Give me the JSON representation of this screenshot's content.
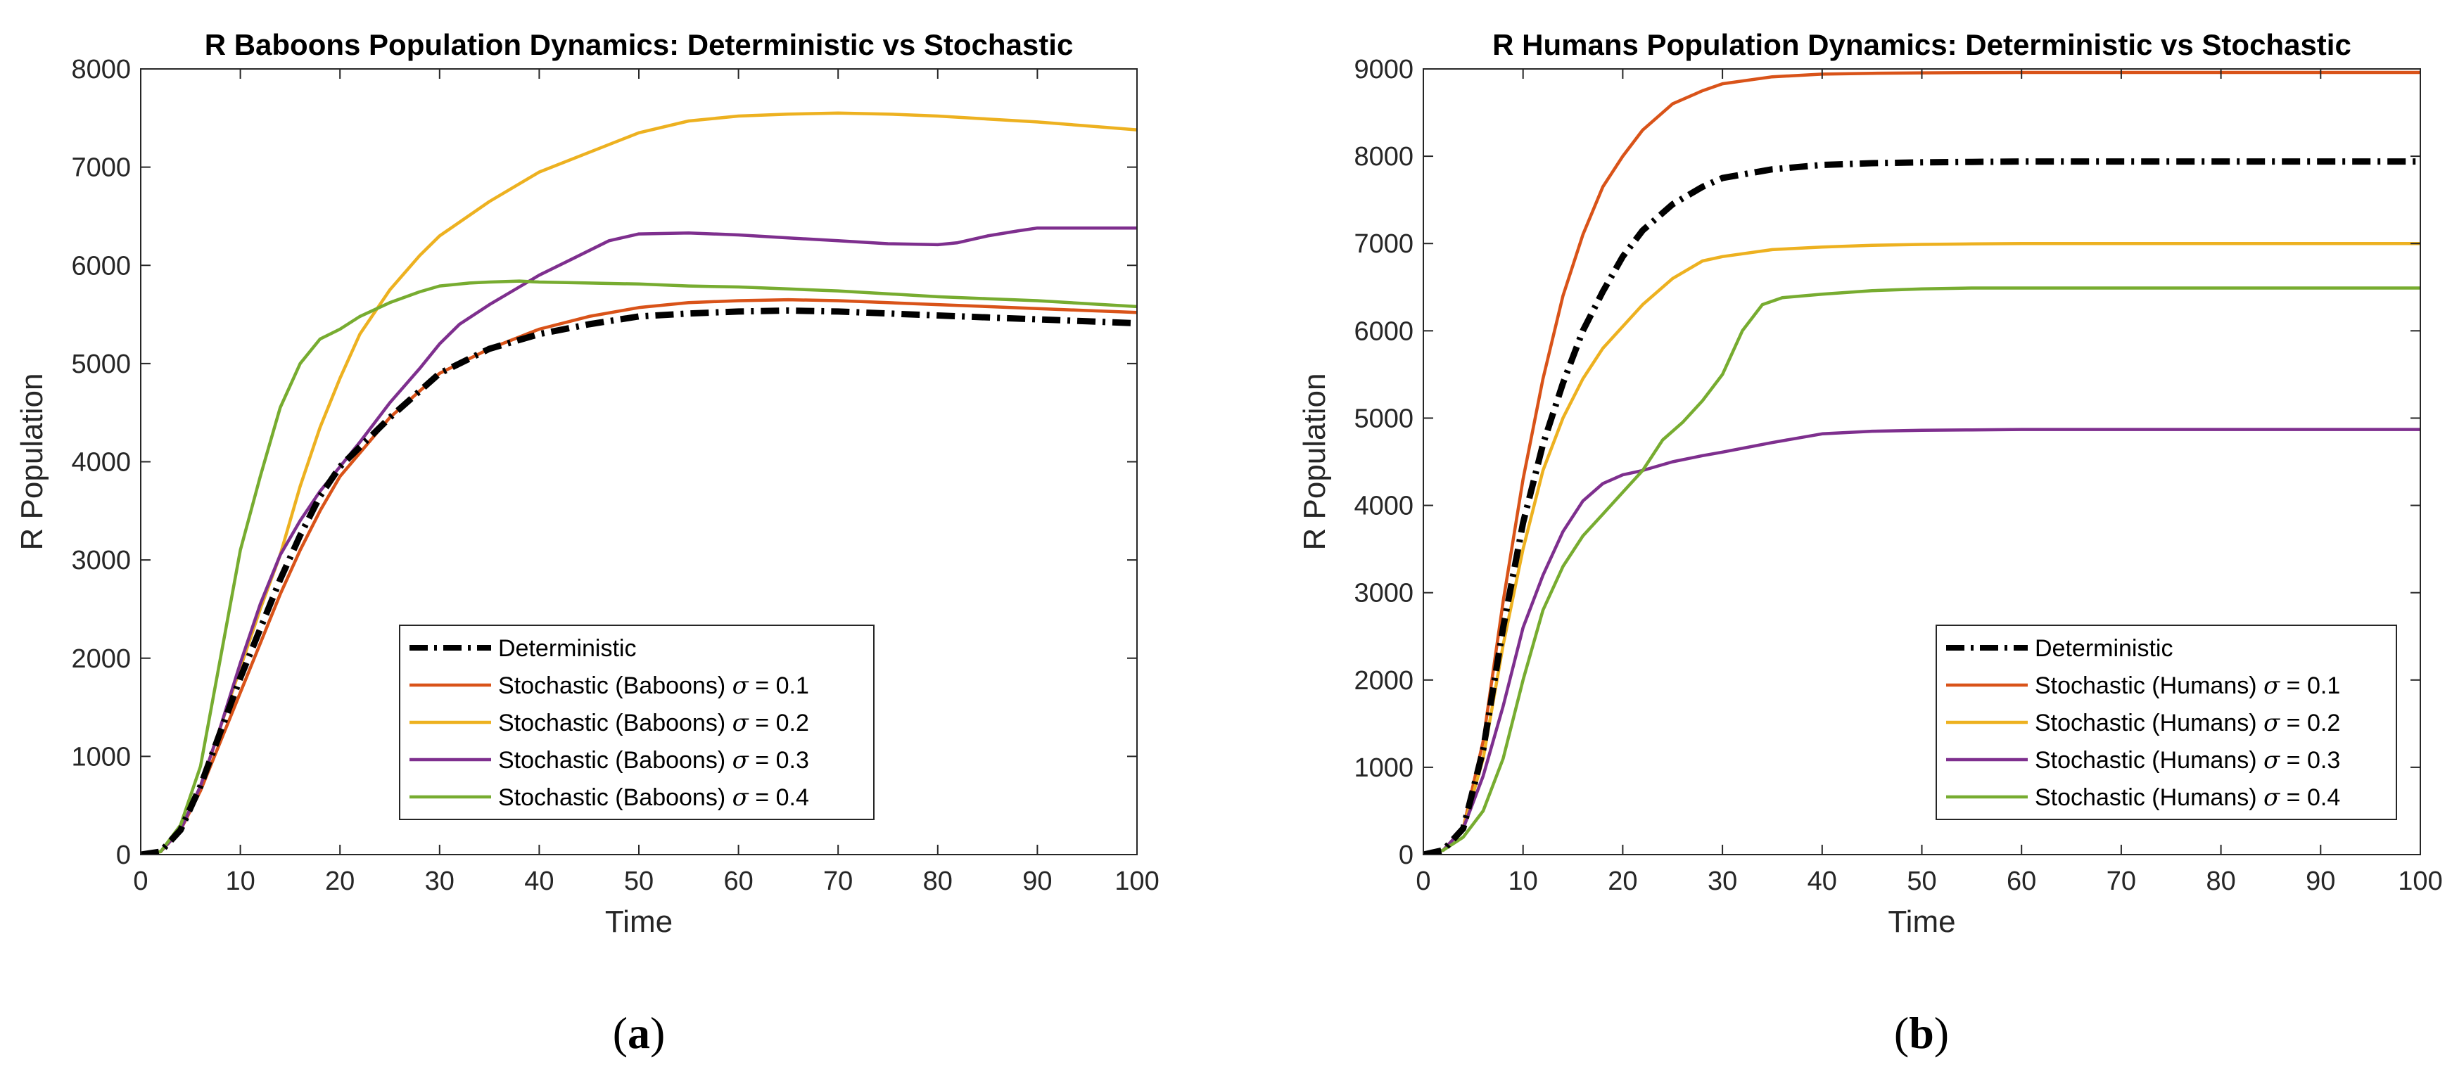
{
  "chart_data": [
    {
      "type": "line",
      "panel": "a",
      "caption_letter": "a",
      "title": "R Baboons Population Dynamics: Deterministic vs Stochastic",
      "xlabel": "Time",
      "ylabel": "R Population",
      "xlim": [
        0,
        100
      ],
      "ylim": [
        0,
        8000
      ],
      "xticks": [
        0,
        10,
        20,
        30,
        40,
        50,
        60,
        70,
        80,
        90,
        100
      ],
      "yticks": [
        0,
        1000,
        2000,
        3000,
        4000,
        5000,
        6000,
        7000,
        8000
      ],
      "legend_position": "bottom-center",
      "series": [
        {
          "name": "Deterministic",
          "legend_prefix": "Deterministic",
          "sigma": "",
          "color": "#000000",
          "style": "dashdot",
          "x": [
            0,
            2,
            4,
            6,
            8,
            10,
            12,
            14,
            16,
            18,
            20,
            25,
            30,
            35,
            40,
            45,
            50,
            55,
            60,
            65,
            70,
            75,
            80,
            85,
            90,
            95,
            100
          ],
          "y": [
            0,
            30,
            250,
            700,
            1250,
            1800,
            2300,
            2800,
            3250,
            3650,
            3950,
            4450,
            4900,
            5150,
            5300,
            5400,
            5480,
            5510,
            5530,
            5540,
            5530,
            5510,
            5490,
            5470,
            5450,
            5430,
            5410
          ]
        },
        {
          "name": "Stochastic (Baboons) σ = 0.1",
          "legend_prefix": "Stochastic (Baboons) ",
          "sigma": "0.1",
          "color": "#D95319",
          "style": "solid",
          "x": [
            0,
            2,
            4,
            6,
            8,
            10,
            12,
            14,
            16,
            18,
            20,
            25,
            30,
            35,
            40,
            45,
            50,
            55,
            60,
            65,
            70,
            75,
            80,
            85,
            90,
            95,
            100
          ],
          "y": [
            0,
            30,
            250,
            650,
            1150,
            1650,
            2150,
            2650,
            3100,
            3500,
            3850,
            4450,
            4900,
            5150,
            5350,
            5480,
            5570,
            5620,
            5640,
            5650,
            5640,
            5620,
            5600,
            5580,
            5560,
            5540,
            5520
          ]
        },
        {
          "name": "Stochastic (Baboons) σ = 0.2",
          "legend_prefix": "Stochastic (Baboons) ",
          "sigma": "0.2",
          "color": "#EDB120",
          "style": "solid",
          "x": [
            0,
            2,
            4,
            6,
            8,
            10,
            12,
            14,
            16,
            18,
            20,
            22,
            25,
            28,
            30,
            35,
            40,
            45,
            50,
            55,
            60,
            65,
            70,
            75,
            80,
            85,
            90,
            95,
            100
          ],
          "y": [
            0,
            30,
            250,
            700,
            1300,
            1900,
            2500,
            3050,
            3750,
            4350,
            4850,
            5300,
            5750,
            6100,
            6300,
            6650,
            6950,
            7150,
            7350,
            7470,
            7520,
            7540,
            7550,
            7540,
            7520,
            7490,
            7460,
            7420,
            7380
          ]
        },
        {
          "name": "Stochastic (Baboons) σ = 0.3",
          "legend_prefix": "Stochastic (Baboons) ",
          "sigma": "0.3",
          "color": "#7E2F8E",
          "style": "solid",
          "x": [
            0,
            2,
            4,
            6,
            8,
            10,
            12,
            14,
            16,
            18,
            20,
            22,
            25,
            28,
            30,
            32,
            35,
            38,
            40,
            43,
            45,
            47,
            50,
            55,
            60,
            65,
            70,
            75,
            80,
            82,
            85,
            88,
            90,
            95,
            100
          ],
          "y": [
            0,
            30,
            250,
            700,
            1300,
            1950,
            2550,
            3050,
            3400,
            3700,
            3950,
            4200,
            4600,
            4950,
            5200,
            5400,
            5600,
            5780,
            5900,
            6050,
            6150,
            6250,
            6320,
            6330,
            6310,
            6280,
            6250,
            6220,
            6210,
            6230,
            6300,
            6350,
            6380,
            6380,
            6380
          ]
        },
        {
          "name": "Stochastic (Baboons) σ = 0.4",
          "legend_prefix": "Stochastic (Baboons) ",
          "sigma": "0.4",
          "color": "#77AC30",
          "style": "solid",
          "x": [
            0,
            2,
            4,
            6,
            8,
            10,
            12,
            14,
            16,
            18,
            20,
            22,
            25,
            28,
            30,
            33,
            35,
            38,
            40,
            45,
            50,
            55,
            60,
            65,
            70,
            75,
            80,
            85,
            90,
            95,
            100
          ],
          "y": [
            0,
            30,
            300,
            900,
            2000,
            3100,
            3850,
            4550,
            5000,
            5250,
            5350,
            5480,
            5620,
            5730,
            5790,
            5820,
            5830,
            5840,
            5830,
            5820,
            5810,
            5790,
            5780,
            5760,
            5740,
            5710,
            5680,
            5660,
            5640,
            5610,
            5580
          ]
        }
      ]
    },
    {
      "type": "line",
      "panel": "b",
      "caption_letter": "b",
      "title": "R Humans Population Dynamics: Deterministic vs Stochastic",
      "xlabel": "Time",
      "ylabel": "R Population",
      "xlim": [
        0,
        100
      ],
      "ylim": [
        0,
        9000
      ],
      "xticks": [
        0,
        10,
        20,
        30,
        40,
        50,
        60,
        70,
        80,
        90,
        100
      ],
      "yticks": [
        0,
        1000,
        2000,
        3000,
        4000,
        5000,
        6000,
        7000,
        8000,
        9000
      ],
      "legend_position": "bottom-right",
      "series": [
        {
          "name": "Deterministic",
          "legend_prefix": "Deterministic",
          "sigma": "",
          "color": "#000000",
          "style": "dashdot",
          "x": [
            0,
            2,
            4,
            6,
            8,
            10,
            12,
            14,
            16,
            18,
            20,
            22,
            25,
            28,
            30,
            35,
            40,
            45,
            50,
            55,
            60,
            70,
            80,
            90,
            100
          ],
          "y": [
            0,
            50,
            300,
            1200,
            2600,
            3800,
            4700,
            5400,
            6000,
            6450,
            6850,
            7150,
            7450,
            7650,
            7750,
            7850,
            7900,
            7920,
            7930,
            7935,
            7940,
            7940,
            7940,
            7940,
            7940
          ]
        },
        {
          "name": "Stochastic (Humans) σ = 0.1",
          "legend_prefix": "Stochastic (Humans) ",
          "sigma": "0.1",
          "color": "#D95319",
          "style": "solid",
          "x": [
            0,
            2,
            4,
            6,
            8,
            10,
            12,
            14,
            16,
            18,
            20,
            22,
            25,
            28,
            30,
            35,
            40,
            45,
            50,
            55,
            60,
            70,
            80,
            90,
            100
          ],
          "y": [
            0,
            50,
            300,
            1300,
            2900,
            4300,
            5450,
            6400,
            7100,
            7650,
            8000,
            8300,
            8600,
            8750,
            8830,
            8910,
            8940,
            8950,
            8955,
            8958,
            8960,
            8960,
            8960,
            8960,
            8960
          ]
        },
        {
          "name": "Stochastic (Humans) σ = 0.2",
          "legend_prefix": "Stochastic (Humans) ",
          "sigma": "0.2",
          "color": "#EDB120",
          "style": "solid",
          "x": [
            0,
            2,
            4,
            6,
            8,
            10,
            12,
            14,
            16,
            18,
            20,
            22,
            25,
            28,
            30,
            35,
            40,
            45,
            50,
            55,
            60,
            70,
            80,
            90,
            100
          ],
          "y": [
            0,
            50,
            300,
            1100,
            2400,
            3500,
            4400,
            5000,
            5450,
            5800,
            6050,
            6300,
            6600,
            6800,
            6850,
            6930,
            6960,
            6980,
            6990,
            6995,
            7000,
            7000,
            7000,
            7000,
            7000
          ]
        },
        {
          "name": "Stochastic (Humans) σ = 0.3",
          "legend_prefix": "Stochastic (Humans) ",
          "sigma": "0.3",
          "color": "#7E2F8E",
          "style": "solid",
          "x": [
            0,
            2,
            4,
            6,
            8,
            10,
            12,
            14,
            16,
            18,
            20,
            22,
            25,
            28,
            30,
            35,
            40,
            45,
            50,
            55,
            60,
            70,
            80,
            90,
            100
          ],
          "y": [
            0,
            50,
            300,
            900,
            1700,
            2600,
            3200,
            3700,
            4050,
            4250,
            4350,
            4400,
            4500,
            4570,
            4610,
            4720,
            4820,
            4850,
            4860,
            4865,
            4870,
            4870,
            4870,
            4870,
            4870
          ]
        },
        {
          "name": "Stochastic (Humans) σ = 0.4",
          "legend_prefix": "Stochastic (Humans) ",
          "sigma": "0.4",
          "color": "#77AC30",
          "style": "solid",
          "x": [
            0,
            2,
            4,
            6,
            8,
            10,
            12,
            14,
            16,
            18,
            20,
            22,
            24,
            26,
            28,
            30,
            32,
            34,
            36,
            40,
            45,
            50,
            55,
            60,
            70,
            80,
            90,
            100
          ],
          "y": [
            0,
            50,
            200,
            500,
            1100,
            2000,
            2800,
            3300,
            3650,
            3900,
            4150,
            4400,
            4750,
            4950,
            5200,
            5500,
            6000,
            6300,
            6380,
            6420,
            6460,
            6480,
            6490,
            6490,
            6490,
            6490,
            6490,
            6490
          ]
        }
      ]
    }
  ]
}
